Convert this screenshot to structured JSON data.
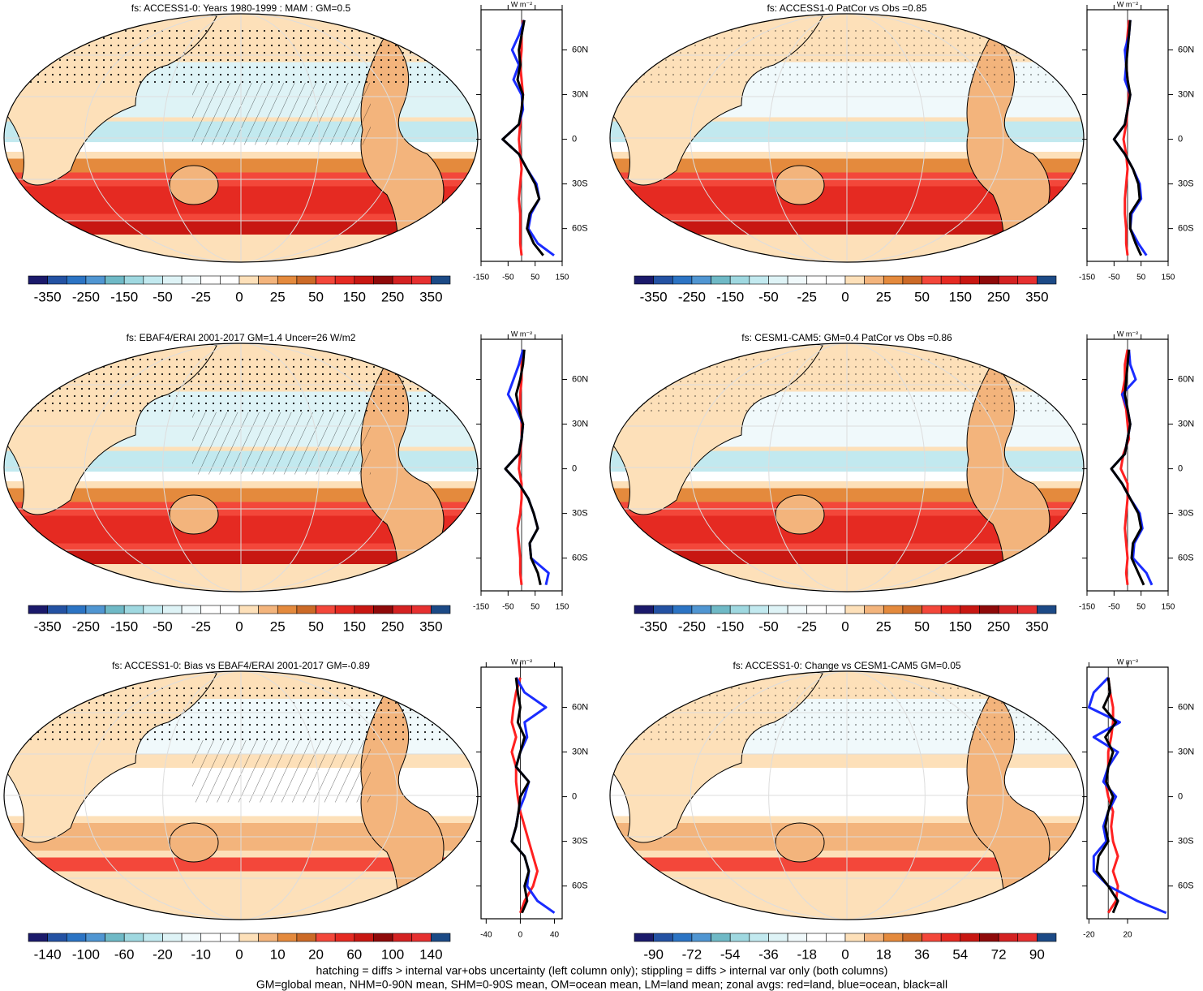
{
  "chart_data": [
    {
      "type": "map",
      "title": "fs: ACCESS1-0: Years 1980-1999 : MAM : GM=0.5",
      "colorbar": {
        "colors": [
          "#1b1a6b",
          "#2452a3",
          "#2c74c4",
          "#5096d2",
          "#6fb9c6",
          "#9fd8e0",
          "#c2e9ef",
          "#def3f6",
          "#f0f9fb",
          "#ffffff",
          "#ffffff",
          "#fde0b9",
          "#f3b47c",
          "#e48a3d",
          "#cc6a27",
          "#f3473a",
          "#e52a22",
          "#c81712",
          "#8f0a0a",
          "#d42222",
          "#e63030",
          "#1c4a86"
        ],
        "ticks": [
          -350,
          -250,
          -150,
          -50,
          -25,
          0,
          25,
          50,
          150,
          250,
          350
        ]
      },
      "zonal": {
        "type": "line",
        "unit": "W m⁻²",
        "xlim": [
          -150,
          150
        ],
        "xticks": [
          -150,
          -50,
          50,
          150
        ],
        "ylim": [
          -82,
          87
        ],
        "yticks": [
          {
            "value": 60,
            "label": "60N"
          },
          {
            "value": 30,
            "label": "30N"
          },
          0,
          {
            "value": -30,
            "label": "30S"
          },
          {
            "value": -60,
            "label": "60S"
          }
        ],
        "y": [
          80,
          70,
          60,
          50,
          40,
          30,
          20,
          10,
          0,
          -10,
          -20,
          -30,
          -40,
          -50,
          -60,
          -70,
          -78
        ],
        "series": [
          {
            "color": "#ff2020",
            "values": [
              5,
              0,
              0,
              -5,
              0,
              5,
              0,
              -5,
              -10,
              -5,
              0,
              -5,
              -10,
              -5,
              -5,
              -5,
              0
            ]
          },
          {
            "color": "#1a2cff",
            "values": [
              10,
              -10,
              -35,
              -10,
              -30,
              0,
              5,
              -10,
              -70,
              -10,
              20,
              55,
              65,
              35,
              25,
              60,
              120
            ]
          },
          {
            "color": "#000000",
            "values": [
              10,
              0,
              -10,
              -5,
              -15,
              5,
              0,
              -10,
              -70,
              -10,
              20,
              50,
              65,
              30,
              20,
              45,
              80
            ]
          }
        ]
      }
    },
    {
      "type": "map",
      "title": "fs: ACCESS1-0 PatCor vs Obs =0.85",
      "colorbar": {
        "colors": [
          "#1b1a6b",
          "#2452a3",
          "#2c74c4",
          "#5096d2",
          "#6fb9c6",
          "#9fd8e0",
          "#c2e9ef",
          "#def3f6",
          "#f0f9fb",
          "#ffffff",
          "#ffffff",
          "#fde0b9",
          "#f3b47c",
          "#e48a3d",
          "#cc6a27",
          "#f3473a",
          "#e52a22",
          "#c81712",
          "#8f0a0a",
          "#d42222",
          "#e63030",
          "#1c4a86"
        ],
        "ticks": [
          -350,
          -250,
          -150,
          -50,
          -25,
          0,
          25,
          50,
          150,
          250,
          350
        ]
      },
      "zonal": {
        "type": "line",
        "unit": "W m⁻²",
        "xlim": [
          -150,
          150
        ],
        "xticks": [
          -150,
          -50,
          50,
          150
        ],
        "ylim": [
          -82,
          87
        ],
        "yticks": [
          {
            "value": 60,
            "label": "60N"
          },
          {
            "value": 30,
            "label": "30N"
          },
          0,
          {
            "value": -30,
            "label": "30S"
          },
          {
            "value": -60,
            "label": "60S"
          }
        ],
        "y": [
          80,
          70,
          60,
          50,
          40,
          30,
          20,
          10,
          0,
          -10,
          -20,
          -30,
          -40,
          -50,
          -60,
          -70,
          -78
        ],
        "series": [
          {
            "color": "#ff2020",
            "values": [
              5,
              0,
              -5,
              -5,
              0,
              5,
              0,
              -5,
              -15,
              -5,
              0,
              -5,
              -10,
              -10,
              -5,
              -5,
              0
            ]
          },
          {
            "color": "#1a2cff",
            "values": [
              10,
              5,
              -10,
              -5,
              -10,
              10,
              0,
              -10,
              -50,
              -10,
              20,
              45,
              50,
              15,
              10,
              40,
              70
            ]
          },
          {
            "color": "#000000",
            "values": [
              10,
              5,
              0,
              -5,
              0,
              10,
              0,
              -10,
              -50,
              -10,
              20,
              40,
              45,
              10,
              10,
              30,
              50
            ]
          }
        ]
      }
    },
    {
      "type": "map",
      "title": "fs: EBAF4/ERAI 2001-2017 GM=1.4 Uncer=26 W/m2",
      "colorbar": {
        "colors": [
          "#1b1a6b",
          "#2452a3",
          "#2c74c4",
          "#5096d2",
          "#6fb9c6",
          "#9fd8e0",
          "#c2e9ef",
          "#def3f6",
          "#f0f9fb",
          "#ffffff",
          "#ffffff",
          "#fde0b9",
          "#f3b47c",
          "#e48a3d",
          "#cc6a27",
          "#f3473a",
          "#e52a22",
          "#c81712",
          "#8f0a0a",
          "#d42222",
          "#e63030",
          "#1c4a86"
        ],
        "ticks": [
          -350,
          -250,
          -150,
          -50,
          -25,
          0,
          25,
          50,
          150,
          250,
          350
        ]
      },
      "zonal": {
        "type": "line",
        "unit": "W m⁻²",
        "xlim": [
          -150,
          150
        ],
        "xticks": [
          -150,
          -50,
          50,
          150
        ],
        "ylim": [
          -82,
          87
        ],
        "yticks": [
          {
            "value": 60,
            "label": "60N"
          },
          {
            "value": 30,
            "label": "30N"
          },
          0,
          {
            "value": -30,
            "label": "30S"
          },
          {
            "value": -60,
            "label": "60S"
          }
        ],
        "y": [
          80,
          70,
          60,
          50,
          40,
          30,
          20,
          10,
          0,
          -10,
          -20,
          -30,
          -40,
          -50,
          -60,
          -70,
          -78
        ],
        "series": [
          {
            "color": "#ff2020",
            "values": [
              5,
              0,
              0,
              -5,
              -5,
              0,
              0,
              -5,
              -10,
              0,
              0,
              -5,
              -15,
              -10,
              -5,
              -5,
              0
            ]
          },
          {
            "color": "#1a2cff",
            "values": [
              5,
              -10,
              -30,
              -50,
              -20,
              5,
              0,
              -10,
              -60,
              -10,
              25,
              45,
              60,
              30,
              35,
              100,
              90
            ]
          },
          {
            "color": "#000000",
            "values": [
              10,
              5,
              -5,
              -20,
              -10,
              5,
              0,
              -10,
              -60,
              -10,
              25,
              45,
              60,
              30,
              35,
              60,
              70
            ]
          }
        ]
      }
    },
    {
      "type": "map",
      "title": "fs: CESM1-CAM5: GM=0.4 PatCor vs Obs =0.86",
      "colorbar": {
        "colors": [
          "#1b1a6b",
          "#2452a3",
          "#2c74c4",
          "#5096d2",
          "#6fb9c6",
          "#9fd8e0",
          "#c2e9ef",
          "#def3f6",
          "#f0f9fb",
          "#ffffff",
          "#ffffff",
          "#fde0b9",
          "#f3b47c",
          "#e48a3d",
          "#cc6a27",
          "#f3473a",
          "#e52a22",
          "#c81712",
          "#8f0a0a",
          "#d42222",
          "#e63030",
          "#1c4a86"
        ],
        "ticks": [
          -350,
          -250,
          -150,
          -50,
          -25,
          0,
          25,
          50,
          150,
          250,
          350
        ]
      },
      "zonal": {
        "type": "line",
        "unit": "W m⁻²",
        "xlim": [
          -150,
          150
        ],
        "xticks": [
          -150,
          -50,
          50,
          150
        ],
        "ylim": [
          -82,
          87
        ],
        "yticks": [
          {
            "value": 60,
            "label": "60N"
          },
          {
            "value": 30,
            "label": "30N"
          },
          0,
          {
            "value": -30,
            "label": "30S"
          },
          {
            "value": -60,
            "label": "60S"
          }
        ],
        "y": [
          80,
          70,
          60,
          50,
          40,
          30,
          20,
          10,
          0,
          -10,
          -20,
          -30,
          -40,
          -50,
          -60,
          -70,
          -78
        ],
        "series": [
          {
            "color": "#ff2020",
            "values": [
              0,
              -10,
              -10,
              -20,
              -5,
              0,
              5,
              -15,
              -25,
              0,
              0,
              -5,
              -10,
              -5,
              0,
              -5,
              0
            ]
          },
          {
            "color": "#1a2cff",
            "values": [
              5,
              10,
              30,
              -20,
              0,
              10,
              0,
              -10,
              -60,
              -20,
              10,
              45,
              55,
              25,
              20,
              70,
              90
            ]
          },
          {
            "color": "#000000",
            "values": [
              5,
              0,
              -5,
              -10,
              0,
              10,
              0,
              -10,
              -60,
              -20,
              10,
              40,
              50,
              20,
              15,
              40,
              60
            ]
          }
        ]
      }
    },
    {
      "type": "map",
      "title": "fs: ACCESS1-0: Bias vs EBAF4/ERAI 2001-2017 GM=-0.89",
      "colorbar": {
        "colors": [
          "#1b1a6b",
          "#2452a3",
          "#2c74c4",
          "#5096d2",
          "#6fb9c6",
          "#9fd8e0",
          "#c2e9ef",
          "#def3f6",
          "#f0f9fb",
          "#ffffff",
          "#ffffff",
          "#fde0b9",
          "#f3b47c",
          "#e48a3d",
          "#cc6a27",
          "#f3473a",
          "#e52a22",
          "#c81712",
          "#8f0a0a",
          "#d42222",
          "#e63030",
          "#1c4a86"
        ],
        "ticks": [
          -140,
          -100,
          -60,
          -20,
          -10,
          0,
          10,
          20,
          60,
          100,
          140
        ]
      },
      "zonal": {
        "type": "line",
        "unit": "W m⁻²",
        "xlim": [
          -46,
          49
        ],
        "xticks": [
          -40,
          0,
          40
        ],
        "ylim": [
          -82,
          87
        ],
        "yticks": [
          {
            "value": 60,
            "label": "60N"
          },
          {
            "value": 30,
            "label": "30N"
          },
          0,
          {
            "value": -30,
            "label": "30S"
          },
          {
            "value": -60,
            "label": "60S"
          }
        ],
        "y": [
          80,
          70,
          60,
          50,
          40,
          30,
          20,
          10,
          0,
          -10,
          -20,
          -30,
          -40,
          -50,
          -60,
          -70,
          -78
        ],
        "series": [
          {
            "color": "#ff2020",
            "values": [
              0,
              -5,
              -8,
              -10,
              -5,
              -10,
              -5,
              -5,
              -3,
              0,
              5,
              10,
              15,
              20,
              15,
              5,
              0
            ]
          },
          {
            "color": "#1a2cff",
            "values": [
              -5,
              5,
              30,
              5,
              8,
              0,
              -5,
              10,
              5,
              -2,
              -5,
              -10,
              5,
              10,
              8,
              20,
              40
            ]
          },
          {
            "color": "#000000",
            "values": [
              -5,
              -3,
              0,
              -3,
              5,
              0,
              -5,
              10,
              0,
              -2,
              -5,
              -10,
              5,
              10,
              5,
              8,
              2
            ]
          }
        ]
      }
    },
    {
      "type": "map",
      "title": "fs: ACCESS1-0: Change vs CESM1-CAM5 GM=0.05",
      "colorbar": {
        "colors": [
          "#1b1a6b",
          "#2452a3",
          "#2c74c4",
          "#5096d2",
          "#6fb9c6",
          "#9fd8e0",
          "#c2e9ef",
          "#def3f6",
          "#f0f9fb",
          "#ffffff",
          "#ffffff",
          "#fde0b9",
          "#f3b47c",
          "#e48a3d",
          "#cc6a27",
          "#f3473a",
          "#e52a22",
          "#c81712",
          "#8f0a0a",
          "#d42222",
          "#e63030",
          "#1c4a86"
        ],
        "ticks": [
          -90,
          -72,
          -54,
          -36,
          -18,
          0,
          18,
          36,
          54,
          72,
          90
        ]
      },
      "zonal": {
        "type": "line",
        "unit": "W m⁻²",
        "xlim": [
          -22,
          62
        ],
        "xticks": [
          -20,
          20
        ],
        "ylim": [
          -82,
          87
        ],
        "yticks": [
          {
            "value": 60,
            "label": "60N"
          },
          {
            "value": 30,
            "label": "30N"
          },
          0,
          {
            "value": -30,
            "label": "30S"
          },
          {
            "value": -60,
            "label": "60S"
          }
        ],
        "y": [
          80,
          70,
          60,
          50,
          40,
          30,
          20,
          10,
          0,
          -10,
          -20,
          -30,
          -40,
          -50,
          -60,
          -70,
          -78
        ],
        "series": [
          {
            "color": "#ff2020",
            "values": [
              0,
              2,
              5,
              5,
              3,
              0,
              0,
              -3,
              0,
              5,
              3,
              5,
              10,
              5,
              10,
              8,
              0
            ]
          },
          {
            "color": "#1a2cff",
            "values": [
              0,
              -15,
              -20,
              12,
              -15,
              10,
              0,
              -5,
              8,
              0,
              -5,
              -2,
              -15,
              -15,
              0,
              30,
              60
            ]
          },
          {
            "color": "#000000",
            "values": [
              0,
              2,
              -5,
              8,
              -3,
              5,
              0,
              -2,
              5,
              0,
              -3,
              0,
              -10,
              -12,
              0,
              10,
              5
            ]
          }
        ]
      }
    }
  ],
  "footer": [
    "hatching = diffs > internal var+obs uncertainty (left column only); stippling = diffs > internal var only (both columns)",
    "GM=global mean, NHM=0-90N mean, SHM=0-90S mean, OM=ocean mean, LM=land mean; zonal avgs: red=land, blue=ocean, black=all"
  ]
}
